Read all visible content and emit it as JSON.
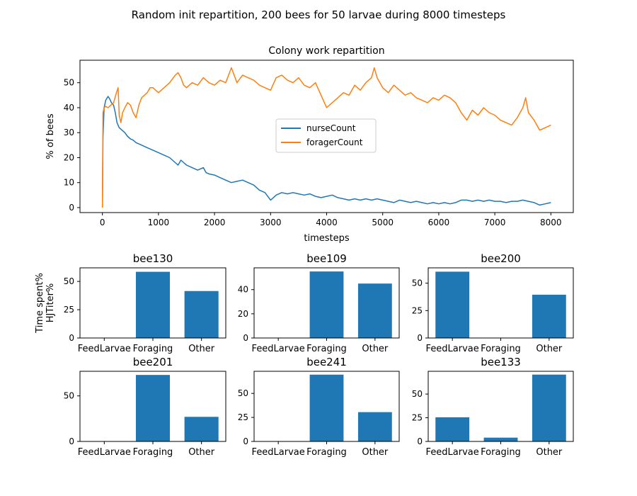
{
  "suptitle": "Random init repartition, 200 bees for 50 larvae during 8000 timesteps",
  "colors": {
    "nurse": "#1f77b4",
    "forager": "#ff7f0e",
    "bar": "#1f77b4"
  },
  "chart_data": [
    {
      "type": "line",
      "title": "Colony work repartition",
      "xlabel": "timesteps",
      "ylabel": "% of bees",
      "xlim": [
        -400,
        8400
      ],
      "ylim": [
        -2,
        59
      ],
      "xticks": [
        0,
        1000,
        2000,
        3000,
        4000,
        5000,
        6000,
        7000,
        8000
      ],
      "yticks": [
        0,
        10,
        20,
        30,
        40,
        50
      ],
      "legend": "center",
      "series": [
        {
          "name": "nurseCount",
          "color": "#1f77b4",
          "points": [
            [
              0,
              0
            ],
            [
              10,
              28
            ],
            [
              30,
              40
            ],
            [
              60,
              43
            ],
            [
              100,
              44.5
            ],
            [
              130,
              43.5
            ],
            [
              160,
              42
            ],
            [
              200,
              41
            ],
            [
              230,
              38
            ],
            [
              260,
              34
            ],
            [
              300,
              32
            ],
            [
              350,
              31
            ],
            [
              400,
              30
            ],
            [
              450,
              28.5
            ],
            [
              500,
              27.5
            ],
            [
              550,
              27
            ],
            [
              600,
              26
            ],
            [
              650,
              25.5
            ],
            [
              700,
              25
            ],
            [
              800,
              24
            ],
            [
              900,
              23
            ],
            [
              1000,
              22
            ],
            [
              1100,
              21
            ],
            [
              1200,
              20
            ],
            [
              1300,
              18
            ],
            [
              1350,
              17
            ],
            [
              1400,
              19
            ],
            [
              1450,
              18
            ],
            [
              1500,
              17
            ],
            [
              1600,
              16
            ],
            [
              1700,
              15
            ],
            [
              1800,
              16
            ],
            [
              1850,
              14
            ],
            [
              1900,
              13.5
            ],
            [
              2000,
              13
            ],
            [
              2100,
              12
            ],
            [
              2200,
              11
            ],
            [
              2300,
              10
            ],
            [
              2400,
              10.5
            ],
            [
              2500,
              11
            ],
            [
              2600,
              10
            ],
            [
              2700,
              9
            ],
            [
              2800,
              7
            ],
            [
              2900,
              6
            ],
            [
              3000,
              3
            ],
            [
              3050,
              4
            ],
            [
              3100,
              5
            ],
            [
              3200,
              6
            ],
            [
              3300,
              5.5
            ],
            [
              3400,
              6
            ],
            [
              3500,
              5.5
            ],
            [
              3600,
              5
            ],
            [
              3700,
              5.5
            ],
            [
              3800,
              4.5
            ],
            [
              3900,
              4
            ],
            [
              4000,
              4.5
            ],
            [
              4100,
              5
            ],
            [
              4200,
              4
            ],
            [
              4300,
              3.5
            ],
            [
              4400,
              3
            ],
            [
              4500,
              3.5
            ],
            [
              4600,
              3
            ],
            [
              4700,
              3.5
            ],
            [
              4800,
              3
            ],
            [
              4900,
              3.5
            ],
            [
              5000,
              3
            ],
            [
              5100,
              2.5
            ],
            [
              5200,
              2
            ],
            [
              5300,
              3
            ],
            [
              5400,
              2.5
            ],
            [
              5500,
              2
            ],
            [
              5600,
              2.5
            ],
            [
              5700,
              2
            ],
            [
              5800,
              1.5
            ],
            [
              5900,
              2
            ],
            [
              6000,
              1.5
            ],
            [
              6100,
              2
            ],
            [
              6200,
              1.5
            ],
            [
              6300,
              2
            ],
            [
              6400,
              3
            ],
            [
              6500,
              3
            ],
            [
              6600,
              2.5
            ],
            [
              6700,
              3
            ],
            [
              6800,
              2.5
            ],
            [
              6900,
              3
            ],
            [
              7000,
              2.5
            ],
            [
              7100,
              2.5
            ],
            [
              7200,
              2
            ],
            [
              7300,
              2.5
            ],
            [
              7400,
              2.5
            ],
            [
              7500,
              3
            ],
            [
              7600,
              2.5
            ],
            [
              7700,
              2
            ],
            [
              7800,
              1
            ],
            [
              7900,
              1.5
            ],
            [
              8000,
              2
            ]
          ]
        },
        {
          "name": "foragerCount",
          "color": "#ff7f0e",
          "points": [
            [
              0,
              0
            ],
            [
              10,
              38
            ],
            [
              30,
              40
            ],
            [
              60,
              40.5
            ],
            [
              100,
              40
            ],
            [
              150,
              41
            ],
            [
              200,
              42
            ],
            [
              250,
              46
            ],
            [
              280,
              48
            ],
            [
              300,
              37
            ],
            [
              330,
              34
            ],
            [
              360,
              38
            ],
            [
              400,
              40
            ],
            [
              450,
              42
            ],
            [
              500,
              41
            ],
            [
              550,
              38
            ],
            [
              600,
              36
            ],
            [
              650,
              41
            ],
            [
              700,
              44
            ],
            [
              800,
              46
            ],
            [
              850,
              48
            ],
            [
              900,
              48
            ],
            [
              1000,
              46
            ],
            [
              1100,
              48
            ],
            [
              1200,
              50
            ],
            [
              1300,
              53
            ],
            [
              1350,
              54
            ],
            [
              1400,
              52
            ],
            [
              1450,
              49
            ],
            [
              1500,
              48
            ],
            [
              1600,
              50
            ],
            [
              1700,
              49
            ],
            [
              1800,
              52
            ],
            [
              1900,
              50
            ],
            [
              2000,
              49
            ],
            [
              2100,
              51
            ],
            [
              2200,
              50
            ],
            [
              2300,
              56
            ],
            [
              2400,
              50
            ],
            [
              2500,
              53
            ],
            [
              2600,
              52
            ],
            [
              2700,
              51
            ],
            [
              2800,
              49
            ],
            [
              2900,
              48
            ],
            [
              3000,
              47
            ],
            [
              3100,
              52
            ],
            [
              3200,
              53
            ],
            [
              3300,
              51
            ],
            [
              3400,
              50
            ],
            [
              3500,
              52
            ],
            [
              3600,
              49
            ],
            [
              3700,
              48
            ],
            [
              3800,
              50
            ],
            [
              3900,
              45
            ],
            [
              4000,
              40
            ],
            [
              4100,
              42
            ],
            [
              4200,
              44
            ],
            [
              4300,
              46
            ],
            [
              4400,
              45
            ],
            [
              4500,
              49
            ],
            [
              4600,
              47
            ],
            [
              4700,
              50
            ],
            [
              4800,
              52
            ],
            [
              4850,
              56
            ],
            [
              4900,
              52
            ],
            [
              5000,
              48
            ],
            [
              5100,
              46
            ],
            [
              5200,
              49
            ],
            [
              5300,
              47
            ],
            [
              5400,
              45
            ],
            [
              5500,
              46
            ],
            [
              5600,
              44
            ],
            [
              5700,
              43
            ],
            [
              5800,
              42
            ],
            [
              5900,
              44
            ],
            [
              6000,
              43
            ],
            [
              6100,
              45
            ],
            [
              6200,
              44
            ],
            [
              6300,
              42
            ],
            [
              6400,
              38
            ],
            [
              6500,
              35
            ],
            [
              6600,
              39
            ],
            [
              6700,
              37
            ],
            [
              6800,
              40
            ],
            [
              6900,
              38
            ],
            [
              7000,
              37
            ],
            [
              7100,
              35
            ],
            [
              7200,
              34
            ],
            [
              7300,
              33
            ],
            [
              7400,
              36
            ],
            [
              7500,
              40
            ],
            [
              7550,
              44
            ],
            [
              7600,
              38
            ],
            [
              7700,
              35
            ],
            [
              7800,
              31
            ],
            [
              7900,
              32
            ],
            [
              8000,
              33
            ]
          ]
        }
      ]
    },
    {
      "type": "bar",
      "title": "bee130",
      "ylabel": "Time spent%\nHJTiter%",
      "categories": [
        "FeedLarvae",
        "Foraging",
        "Other"
      ],
      "values": [
        0,
        58.5,
        41.5
      ],
      "ylim": [
        0,
        62
      ],
      "yticks": [
        0,
        25,
        50
      ]
    },
    {
      "type": "bar",
      "title": "bee109",
      "categories": [
        "FeedLarvae",
        "Foraging",
        "Other"
      ],
      "values": [
        0,
        55,
        45
      ],
      "ylim": [
        0,
        58
      ],
      "yticks": [
        0,
        20,
        40
      ]
    },
    {
      "type": "bar",
      "title": "bee200",
      "categories": [
        "FeedLarvae",
        "Foraging",
        "Other"
      ],
      "values": [
        60.5,
        0,
        39.5
      ],
      "ylim": [
        0,
        64
      ],
      "yticks": [
        0,
        25,
        50
      ]
    },
    {
      "type": "bar",
      "title": "bee201",
      "categories": [
        "FeedLarvae",
        "Foraging",
        "Other"
      ],
      "values": [
        0,
        73,
        27
      ],
      "ylim": [
        0,
        77
      ],
      "yticks": [
        0,
        50
      ]
    },
    {
      "type": "bar",
      "title": "bee241",
      "categories": [
        "FeedLarvae",
        "Foraging",
        "Other"
      ],
      "values": [
        0,
        69.5,
        30.5
      ],
      "ylim": [
        0,
        73
      ],
      "yticks": [
        0,
        25,
        50
      ]
    },
    {
      "type": "bar",
      "title": "bee133",
      "categories": [
        "FeedLarvae",
        "Foraging",
        "Other"
      ],
      "values": [
        25.5,
        4,
        70.5
      ],
      "ylim": [
        0,
        74
      ],
      "yticks": [
        0,
        25,
        50
      ]
    }
  ]
}
